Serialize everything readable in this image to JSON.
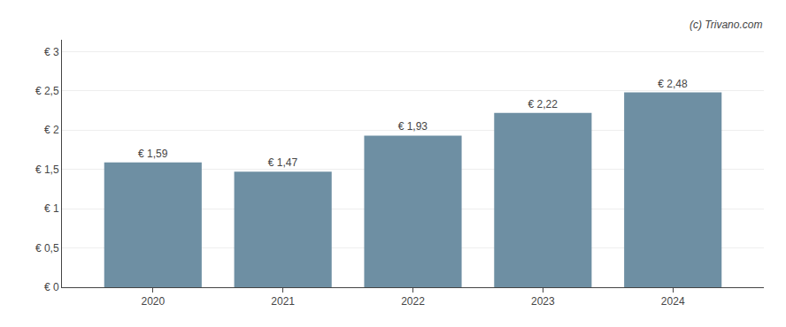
{
  "chart_data": {
    "type": "bar",
    "x": [
      2020,
      2021,
      2022,
      2023,
      2024
    ],
    "values": [
      1.59,
      1.47,
      1.93,
      2.22,
      2.48
    ],
    "value_labels": [
      "€ 1,59",
      "€ 1,47",
      "€ 1,93",
      "€ 2,22",
      "€ 2,48"
    ],
    "data_labels": true,
    "color": "#6e8fa3",
    "xlim": [
      2019.3,
      2024.7
    ],
    "xticks": [
      2020,
      2021,
      2022,
      2023,
      2024
    ],
    "ylim": [
      0,
      3.15
    ],
    "yticks": [
      {
        "value": 0,
        "label": "€ 0"
      },
      {
        "value": 0.5,
        "label": "€ 0,5"
      },
      {
        "value": 1.0,
        "label": "€ 1"
      },
      {
        "value": 1.5,
        "label": "€ 1,5"
      },
      {
        "value": 2.0,
        "label": "€ 2"
      },
      {
        "value": 2.5,
        "label": "€ 2,5"
      },
      {
        "value": 3.0,
        "label": "€ 3"
      }
    ],
    "grid": true,
    "annotations": [
      "(c) Trivano.com"
    ]
  }
}
